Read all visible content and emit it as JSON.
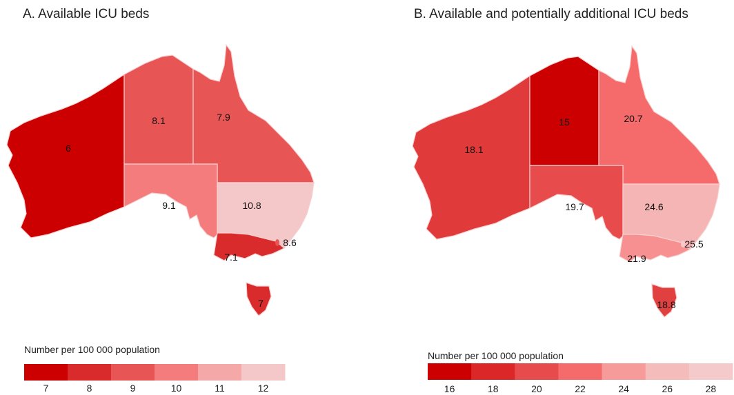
{
  "panels": [
    {
      "title": "A. Available ICU beds",
      "legend": {
        "title": "Number per 100 000 population",
        "ticks": [
          "7",
          "8",
          "9",
          "10",
          "11",
          "12"
        ],
        "colors": [
          "#cc0000",
          "#d92b2b",
          "#e85555",
          "#f47c7c",
          "#f5a8a8",
          "#f4c8c8"
        ]
      },
      "regions": {
        "WA": {
          "value": "6",
          "color": "#cc0000"
        },
        "NT": {
          "value": "8.1",
          "color": "#e85555"
        },
        "QLD": {
          "value": "7.9",
          "color": "#e85555"
        },
        "SA": {
          "value": "9.1",
          "color": "#f47c7c"
        },
        "NSW": {
          "value": "10.8",
          "color": "#f4c8c8"
        },
        "ACT": {
          "value": "8.6",
          "color": "#e85555"
        },
        "VIC": {
          "value": "7.1",
          "color": "#d92b2b"
        },
        "TAS": {
          "value": "7",
          "color": "#d92b2b"
        }
      }
    },
    {
      "title": "B. Available and potentially additional ICU beds",
      "legend": {
        "title": "Number per 100 000 population",
        "ticks": [
          "16",
          "18",
          "20",
          "22",
          "24",
          "26",
          "28"
        ],
        "colors": [
          "#cc0000",
          "#db2727",
          "#e84b4b",
          "#f56b6b",
          "#f79a9a",
          "#f5bcbc",
          "#f4caca"
        ]
      },
      "regions": {
        "WA": {
          "value": "18.1",
          "color": "#e03a3a"
        },
        "NT": {
          "value": "15",
          "color": "#cc0000"
        },
        "QLD": {
          "value": "20.7",
          "color": "#f56b6b"
        },
        "SA": {
          "value": "19.7",
          "color": "#e84b4b"
        },
        "NSW": {
          "value": "24.6",
          "color": "#f5b5b5"
        },
        "ACT": {
          "value": "25.5",
          "color": "#f4caca"
        },
        "VIC": {
          "value": "21.9",
          "color": "#f79090"
        },
        "TAS": {
          "value": "18.8",
          "color": "#e04040"
        }
      }
    }
  ]
}
